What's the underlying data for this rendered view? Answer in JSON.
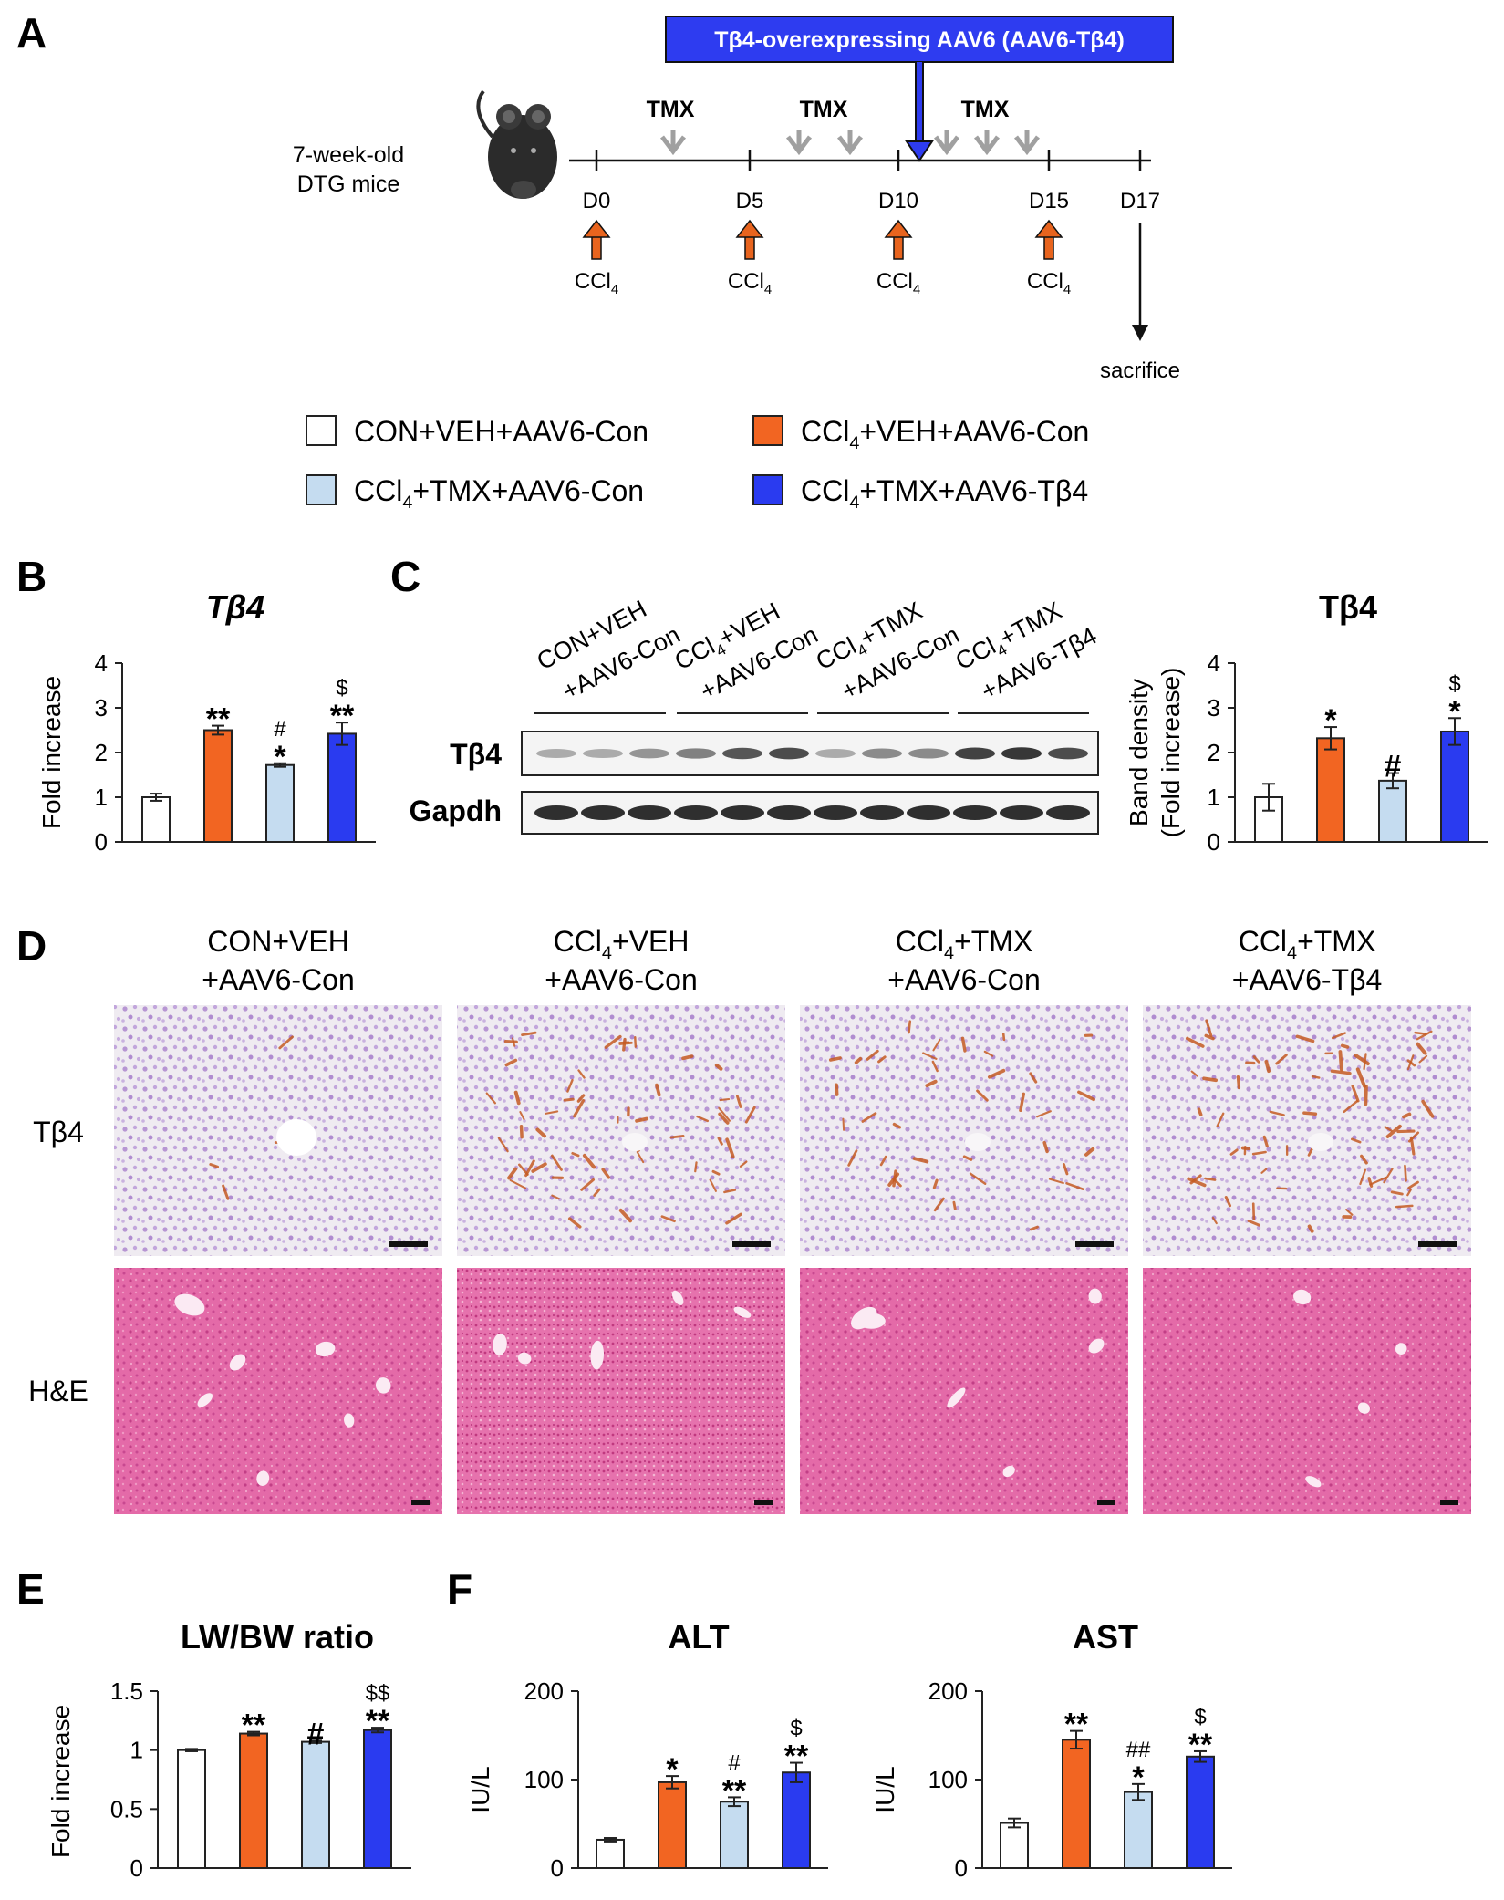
{
  "colors": {
    "con": "#ffffff",
    "ccl4_veh": "#f26522",
    "ccl4_tmx": "#c5dcf0",
    "ccl4_tmx_tb4": "#2a3bf0",
    "aav_box": "#2e3cf0",
    "arrow_orange": "#e8641e",
    "arrow_gray": "#a0a0a0",
    "he_pink": "#e35a9b",
    "ihc_bg": "#eeeaf0",
    "ihc_nuclei": "#b18fd0",
    "ihc_brown": "#c4622a"
  },
  "panels": {
    "A": "A",
    "B": "B",
    "C": "C",
    "D": "D",
    "E": "E",
    "F": "F"
  },
  "timeline": {
    "aav_label": "Tβ4-overexpressing AAV6 (AAV6-Tβ4)",
    "mice_label_1": "7-week-old",
    "mice_label_2": "DTG mice",
    "tmx_labels": [
      "TMX",
      "TMX",
      "TMX"
    ],
    "days": [
      "D0",
      "D5",
      "D10",
      "D15",
      "D17"
    ],
    "ccl4": "CCl",
    "ccl4_sub": "4",
    "sacrifice": "sacrifice",
    "mouse_icon": "mouse-icon"
  },
  "legend": {
    "items": [
      {
        "pre": "CON+VEH+AAV6-Con",
        "sub": "",
        "post": ""
      },
      {
        "pre": "CCl",
        "sub": "4",
        "post": "+VEH+AAV6-Con"
      },
      {
        "pre": "CCl",
        "sub": "4",
        "post": "+TMX+AAV6-Con"
      },
      {
        "pre": "CCl",
        "sub": "4",
        "post": "+TMX+AAV6-Tβ4"
      }
    ]
  },
  "western": {
    "lane_labels": [
      {
        "line1": "CON+VEH",
        "line2": "+AAV6-Con",
        "sub": ""
      },
      {
        "line1": "CCl",
        "line1_sub": "4",
        "line1_post": "+VEH",
        "line2": "+AAV6-Con"
      },
      {
        "line1": "CCl",
        "line1_sub": "4",
        "line1_post": "+TMX",
        "line2": "+AAV6-Con"
      },
      {
        "line1": "CCl",
        "line1_sub": "4",
        "line1_post": "+TMX",
        "line2": "+AAV6-Tβ4"
      }
    ],
    "row_labels": [
      "Tβ4",
      "Gapdh"
    ]
  },
  "histology": {
    "col_titles": [
      {
        "pre": "CON+VEH",
        "sub": "",
        "post": "",
        "line2": "+AAV6-Con"
      },
      {
        "pre": "CCl",
        "sub": "4",
        "post": "+VEH",
        "line2": "+AAV6-Con"
      },
      {
        "pre": "CCl",
        "sub": "4",
        "post": "+TMX",
        "line2": "+AAV6-Con"
      },
      {
        "pre": "CCl",
        "sub": "4",
        "post": "+TMX",
        "line2": "+AAV6-Tβ4"
      }
    ],
    "row_labels": [
      "Tβ4",
      "H&E"
    ]
  },
  "chart_data": [
    {
      "id": "B",
      "type": "bar",
      "title": "Tβ4",
      "ylabel": "Fold increase",
      "ylabel2": "",
      "ylim": [
        0,
        4
      ],
      "yticks": [
        0,
        1,
        2,
        3,
        4
      ],
      "values": [
        1.0,
        2.5,
        1.72,
        2.42
      ],
      "errors": [
        0.08,
        0.1,
        0.04,
        0.25
      ],
      "annotations": [
        [
          "",
          ""
        ],
        [
          "",
          "**"
        ],
        [
          "#",
          "*"
        ],
        [
          "$",
          "**"
        ]
      ]
    },
    {
      "id": "C",
      "type": "bar",
      "title": "Tβ4",
      "ylabel": "Band density",
      "ylabel2": "(Fold increase)",
      "ylim": [
        0,
        4
      ],
      "yticks": [
        0,
        1,
        2,
        3,
        4
      ],
      "values": [
        1.0,
        2.32,
        1.37,
        2.47
      ],
      "errors": [
        0.3,
        0.25,
        0.17,
        0.3
      ],
      "annotations": [
        [
          "",
          ""
        ],
        [
          "",
          "*"
        ],
        [
          "",
          "#"
        ],
        [
          "$",
          "*"
        ]
      ]
    },
    {
      "id": "E",
      "type": "bar",
      "title": "LW/BW ratio",
      "ylabel": "Fold increase",
      "ylabel2": "",
      "ylim": [
        0,
        1.5
      ],
      "yticks": [
        0,
        0.5,
        1,
        1.5
      ],
      "values": [
        1.0,
        1.14,
        1.07,
        1.17
      ],
      "errors": [
        0.01,
        0.015,
        0.01,
        0.02
      ],
      "annotations": [
        [
          "",
          ""
        ],
        [
          "",
          "**"
        ],
        [
          "",
          "#"
        ],
        [
          "$$",
          "**"
        ]
      ]
    },
    {
      "id": "F_ALT",
      "type": "bar",
      "title": "ALT",
      "ylabel": "IU/L",
      "ylabel2": "",
      "ylim": [
        0,
        200
      ],
      "yticks": [
        0,
        100,
        200
      ],
      "values": [
        32,
        97,
        75,
        108
      ],
      "errors": [
        2,
        7,
        5,
        11
      ],
      "annotations": [
        [
          "",
          ""
        ],
        [
          "",
          "*"
        ],
        [
          "#",
          "**"
        ],
        [
          "$",
          "**"
        ]
      ]
    },
    {
      "id": "F_AST",
      "type": "bar",
      "title": "AST",
      "ylabel": "IU/L",
      "ylabel2": "",
      "ylim": [
        0,
        200
      ],
      "yticks": [
        0,
        100,
        200
      ],
      "values": [
        51,
        145,
        86,
        126
      ],
      "errors": [
        5,
        10,
        9,
        6
      ],
      "annotations": [
        [
          "",
          ""
        ],
        [
          "",
          "**"
        ],
        [
          "##",
          "*"
        ],
        [
          "$",
          "**"
        ]
      ]
    }
  ]
}
